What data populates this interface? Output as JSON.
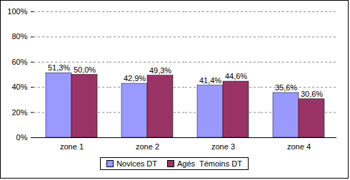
{
  "chart_data": {
    "type": "bar",
    "categories": [
      "zone 1",
      "zone 2",
      "zone 3",
      "zone 4"
    ],
    "series": [
      {
        "name": "Novices DT",
        "color": "#9999ff",
        "values": [
          51.3,
          42.9,
          41.4,
          35.6
        ],
        "value_labels": [
          "51,3%",
          "42,9%",
          "41,4%",
          "35,6%"
        ]
      },
      {
        "name": "Agés  Témoins DT",
        "color": "#993366",
        "values": [
          50.0,
          49.3,
          44.6,
          30.6
        ],
        "value_labels": [
          "50,0%",
          "49,3%",
          "44,6%",
          "30,6%"
        ]
      }
    ],
    "ylim": [
      0,
      100
    ],
    "yticks": [
      {
        "value": 0,
        "label": "0%"
      },
      {
        "value": 20,
        "label": "20%"
      },
      {
        "value": 40,
        "label": "40%"
      },
      {
        "value": 60,
        "label": "60%"
      },
      {
        "value": 80,
        "label": "80%"
      },
      {
        "value": 100,
        "label": "100%"
      }
    ],
    "grid": true,
    "data_labels": true,
    "legend": "bottom"
  }
}
